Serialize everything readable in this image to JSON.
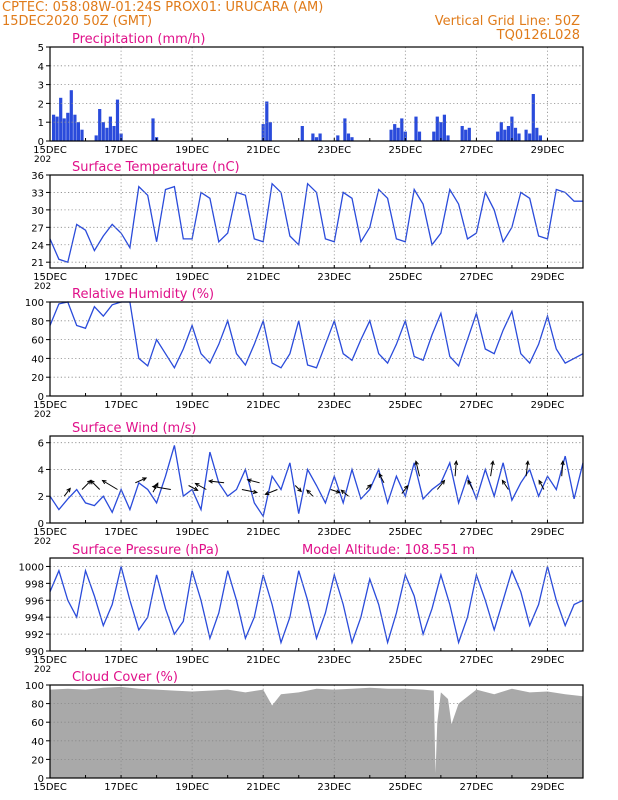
{
  "header": {
    "left_line1": "CPTEC:   058:08W-01:24S   PROX01: URUCARA (AM)",
    "left_line2": "15DEC2020 50Z (GMT)",
    "right_line1": "Vertical Grid Line: 50Z",
    "right_line2": "TQ0126L028"
  },
  "colors": {
    "header": "#e07b1a",
    "title": "#e0118a",
    "series": "#2a4bdb",
    "cloud": "#a9a9a9",
    "axis": "#000000",
    "grid": "#888888"
  },
  "x_axis": {
    "tick_labels": [
      "15DEC",
      "17DEC",
      "19DEC",
      "21DEC",
      "23DEC",
      "25DEC",
      "27DEC",
      "29DEC"
    ],
    "year_label": "202",
    "day_start": 15,
    "day_end": 30
  },
  "chart_data": [
    {
      "id": "precip",
      "type": "bar",
      "title": "Precipitation (mm/h)",
      "ylim": [
        0,
        5
      ],
      "yticks": [
        0,
        1,
        2,
        3,
        4,
        5
      ],
      "x_unit": "day of December 2020",
      "x": [
        15.1,
        15.2,
        15.3,
        15.4,
        15.5,
        15.6,
        15.7,
        15.8,
        15.9,
        16.3,
        16.4,
        16.5,
        16.6,
        16.7,
        16.8,
        16.9,
        17.0,
        17.9,
        18.0,
        21.0,
        21.1,
        21.2,
        22.1,
        22.4,
        22.5,
        22.6,
        23.1,
        23.3,
        23.4,
        23.5,
        24.6,
        24.7,
        24.8,
        24.9,
        25.0,
        25.3,
        25.4,
        25.8,
        25.9,
        26.0,
        26.1,
        26.2,
        26.6,
        26.7,
        26.8,
        27.6,
        27.7,
        27.8,
        27.9,
        28.0,
        28.1,
        28.2,
        28.4,
        28.5,
        28.6,
        28.7,
        28.8
      ],
      "values": [
        1.4,
        1.3,
        2.3,
        1.2,
        1.5,
        2.7,
        1.4,
        1.0,
        0.6,
        0.3,
        1.7,
        1.0,
        0.7,
        1.3,
        0.8,
        2.2,
        0.4,
        1.2,
        0.2,
        0.9,
        2.1,
        1.0,
        0.8,
        0.4,
        0.2,
        0.4,
        0.3,
        1.2,
        0.4,
        0.2,
        0.6,
        0.9,
        0.7,
        1.2,
        0.5,
        1.3,
        0.5,
        0.5,
        1.3,
        1.0,
        1.4,
        0.3,
        0.8,
        0.6,
        0.7,
        0.5,
        1.0,
        0.6,
        0.8,
        1.3,
        0.7,
        0.4,
        0.6,
        0.4,
        2.5,
        0.7,
        0.3
      ]
    },
    {
      "id": "temp",
      "type": "line",
      "title": "Surface Temperature (nC)",
      "ylim": [
        20,
        36
      ],
      "yticks": [
        21,
        24,
        27,
        30,
        33,
        36
      ],
      "x_unit": "day of December 2020",
      "x": [
        15.0,
        15.25,
        15.5,
        15.75,
        16.0,
        16.25,
        16.5,
        16.75,
        17.0,
        17.25,
        17.5,
        17.75,
        18.0,
        18.25,
        18.5,
        18.75,
        19.0,
        19.25,
        19.5,
        19.75,
        20.0,
        20.25,
        20.5,
        20.75,
        21.0,
        21.25,
        21.5,
        21.75,
        22.0,
        22.25,
        22.5,
        22.75,
        23.0,
        23.25,
        23.5,
        23.75,
        24.0,
        24.25,
        24.5,
        24.75,
        25.0,
        25.25,
        25.5,
        25.75,
        26.0,
        26.25,
        26.5,
        26.75,
        27.0,
        27.25,
        27.5,
        27.75,
        28.0,
        28.25,
        28.5,
        28.75,
        29.0,
        29.25,
        29.5,
        29.75,
        30.0
      ],
      "values": [
        25.0,
        21.5,
        21.0,
        27.5,
        26.5,
        23.0,
        25.5,
        27.5,
        26.0,
        23.5,
        34.0,
        32.5,
        24.5,
        33.5,
        34.0,
        25.0,
        25.0,
        33.0,
        32.0,
        24.5,
        26.0,
        33.0,
        32.5,
        25.0,
        24.5,
        34.5,
        33.0,
        25.5,
        24.0,
        34.5,
        33.0,
        25.0,
        24.5,
        33.0,
        32.0,
        24.5,
        27.0,
        33.5,
        32.0,
        25.0,
        24.5,
        33.5,
        31.0,
        24.0,
        26.0,
        33.5,
        31.0,
        25.0,
        26.0,
        33.0,
        30.0,
        24.5,
        27.0,
        33.0,
        32.0,
        25.5,
        25.0,
        33.5,
        33.0,
        31.5,
        31.5
      ]
    },
    {
      "id": "rh",
      "type": "line",
      "title": "Relative Humidity (%)",
      "ylim": [
        0,
        100
      ],
      "yticks": [
        0,
        20,
        40,
        60,
        80,
        100
      ],
      "x_unit": "day of December 2020",
      "x": [
        15.0,
        15.25,
        15.5,
        15.75,
        16.0,
        16.25,
        16.5,
        16.75,
        17.0,
        17.25,
        17.5,
        17.75,
        18.0,
        18.25,
        18.5,
        18.75,
        19.0,
        19.25,
        19.5,
        19.75,
        20.0,
        20.25,
        20.5,
        20.75,
        21.0,
        21.25,
        21.5,
        21.75,
        22.0,
        22.25,
        22.5,
        22.75,
        23.0,
        23.25,
        23.5,
        23.75,
        24.0,
        24.25,
        24.5,
        24.75,
        25.0,
        25.25,
        25.5,
        25.75,
        26.0,
        26.25,
        26.5,
        26.75,
        27.0,
        27.25,
        27.5,
        27.75,
        28.0,
        28.25,
        28.5,
        28.75,
        29.0,
        29.25,
        29.5,
        29.75,
        30.0
      ],
      "values": [
        75,
        98,
        100,
        75,
        72,
        95,
        85,
        97,
        100,
        100,
        40,
        32,
        60,
        45,
        30,
        50,
        75,
        45,
        35,
        55,
        80,
        45,
        33,
        55,
        80,
        35,
        30,
        45,
        80,
        33,
        30,
        55,
        80,
        45,
        38,
        60,
        80,
        45,
        35,
        55,
        80,
        42,
        38,
        65,
        88,
        42,
        32,
        60,
        88,
        50,
        45,
        70,
        90,
        45,
        35,
        55,
        85,
        50,
        35,
        40,
        45
      ]
    },
    {
      "id": "wind",
      "type": "line",
      "title": "Surface Wind (m/s)",
      "ylim": [
        0,
        6.5
      ],
      "yticks": [
        0,
        2,
        4,
        6
      ],
      "x_unit": "day of December 2020",
      "x": [
        15.0,
        15.25,
        15.5,
        15.75,
        16.0,
        16.25,
        16.5,
        16.75,
        17.0,
        17.25,
        17.5,
        17.75,
        18.0,
        18.25,
        18.5,
        18.75,
        19.0,
        19.25,
        19.5,
        19.75,
        20.0,
        20.25,
        20.5,
        20.75,
        21.0,
        21.25,
        21.5,
        21.75,
        22.0,
        22.25,
        22.5,
        22.75,
        23.0,
        23.25,
        23.5,
        23.75,
        24.0,
        24.25,
        24.5,
        24.75,
        25.0,
        25.25,
        25.5,
        25.75,
        26.0,
        26.25,
        26.5,
        26.75,
        27.0,
        27.25,
        27.5,
        27.75,
        28.0,
        28.25,
        28.5,
        28.75,
        29.0,
        29.25,
        29.5,
        29.75,
        30.0
      ],
      "values": [
        2.0,
        1.0,
        1.8,
        2.5,
        1.5,
        1.3,
        2.0,
        0.8,
        2.5,
        1.0,
        3.0,
        2.5,
        1.5,
        3.5,
        5.8,
        2.0,
        2.5,
        1.0,
        5.3,
        3.0,
        2.0,
        2.5,
        4.0,
        1.5,
        0.5,
        3.5,
        2.5,
        4.5,
        0.7,
        4.0,
        2.8,
        1.5,
        3.5,
        1.5,
        4.0,
        1.8,
        2.5,
        4.0,
        1.5,
        3.5,
        2.0,
        4.5,
        1.8,
        2.5,
        3.0,
        4.5,
        1.5,
        3.5,
        1.8,
        4.0,
        2.0,
        4.5,
        1.7,
        3.0,
        4.0,
        2.0,
        3.5,
        2.5,
        5.0,
        1.8,
        4.5
      ],
      "vectors": {
        "x": [
          15.4,
          15.9,
          16.4,
          16.9,
          17.4,
          17.9,
          18.4,
          18.9,
          19.4,
          19.9,
          20.4,
          20.9,
          21.4,
          21.9,
          22.4,
          22.9,
          23.4,
          23.9,
          24.4,
          24.9,
          25.4,
          25.9,
          26.4,
          26.9,
          27.4,
          27.9,
          28.4,
          28.9,
          29.4
        ],
        "y": [
          2.0,
          2.5,
          2.5,
          2.5,
          3.0,
          2.3,
          2.5,
          2.8,
          2.5,
          3.0,
          2.5,
          3.0,
          2.5,
          2.8,
          2.0,
          2.5,
          2.0,
          2.5,
          3.0,
          2.2,
          3.5,
          2.5,
          3.5,
          2.5,
          3.5,
          2.5,
          3.5,
          2.5,
          3.5
        ],
        "u": [
          1.0,
          1.5,
          -1.5,
          -2.5,
          1.8,
          0.8,
          -3.0,
          1.5,
          -1.8,
          -2.5,
          2.5,
          -2.0,
          -2.0,
          1.0,
          -1.0,
          1.5,
          -1.2,
          0.8,
          -0.8,
          1.0,
          -0.6,
          1.2,
          0.2,
          -0.8,
          0.4,
          -1.0,
          0.3,
          -0.8,
          0.2
        ],
        "v": [
          1.3,
          1.5,
          1.5,
          1.5,
          0.8,
          1.5,
          0.5,
          -0.8,
          1.0,
          0.3,
          -0.5,
          0.5,
          -0.8,
          -1.0,
          1.0,
          -0.5,
          1.0,
          0.8,
          1.5,
          1.3,
          2.5,
          1.5,
          2.5,
          1.5,
          2.5,
          1.5,
          2.5,
          1.5,
          2.5
        ]
      }
    },
    {
      "id": "pres",
      "type": "line",
      "title": "Surface Pressure (hPa)",
      "annotation": "Model Altitude: 108.551  m",
      "ylim": [
        990,
        1001
      ],
      "yticks": [
        990,
        992,
        994,
        996,
        998,
        1000
      ],
      "x_unit": "day of December 2020",
      "x": [
        15.0,
        15.25,
        15.5,
        15.75,
        16.0,
        16.25,
        16.5,
        16.75,
        17.0,
        17.25,
        17.5,
        17.75,
        18.0,
        18.25,
        18.5,
        18.75,
        19.0,
        19.25,
        19.5,
        19.75,
        20.0,
        20.25,
        20.5,
        20.75,
        21.0,
        21.25,
        21.5,
        21.75,
        22.0,
        22.25,
        22.5,
        22.75,
        23.0,
        23.25,
        23.5,
        23.75,
        24.0,
        24.25,
        24.5,
        24.75,
        25.0,
        25.25,
        25.5,
        25.75,
        26.0,
        26.25,
        26.5,
        26.75,
        27.0,
        27.25,
        27.5,
        27.75,
        28.0,
        28.25,
        28.5,
        28.75,
        29.0,
        29.25,
        29.5,
        29.75,
        30.0
      ],
      "values": [
        997.0,
        999.5,
        996.0,
        994.0,
        999.5,
        996.5,
        993.0,
        995.5,
        1000.0,
        996.0,
        992.5,
        994.0,
        999.0,
        995.0,
        992.0,
        993.5,
        999.5,
        996.0,
        991.5,
        994.5,
        999.5,
        996.0,
        991.5,
        994.0,
        999.0,
        995.5,
        991.0,
        994.0,
        999.5,
        996.0,
        991.5,
        994.5,
        999.0,
        995.5,
        991.0,
        994.0,
        998.5,
        995.5,
        991.0,
        994.5,
        999.0,
        996.5,
        992.0,
        995.0,
        999.0,
        995.5,
        991.0,
        994.0,
        999.0,
        996.0,
        992.5,
        996.0,
        999.5,
        997.0,
        993.0,
        995.5,
        1000.0,
        996.0,
        993.0,
        995.5,
        996.0
      ]
    },
    {
      "id": "cloud",
      "type": "area",
      "title": "Cloud Cover (%)",
      "ylim": [
        0,
        100
      ],
      "yticks": [
        0,
        20,
        40,
        60,
        80,
        100
      ],
      "x_unit": "day of December 2020",
      "x": [
        15.0,
        15.5,
        16.0,
        16.5,
        17.0,
        17.5,
        18.0,
        18.5,
        19.0,
        19.5,
        20.0,
        20.5,
        21.0,
        21.25,
        21.5,
        22.0,
        22.5,
        23.0,
        23.5,
        24.0,
        24.5,
        25.0,
        25.5,
        25.8,
        25.85,
        25.9,
        26.0,
        26.2,
        26.3,
        26.5,
        27.0,
        27.5,
        28.0,
        28.5,
        29.0,
        29.5,
        30.0
      ],
      "values": [
        95,
        96,
        95,
        97,
        98,
        96,
        95,
        94,
        93,
        94,
        95,
        92,
        95,
        78,
        90,
        92,
        96,
        95,
        96,
        97,
        96,
        96,
        95,
        94,
        5,
        60,
        92,
        85,
        58,
        80,
        95,
        90,
        96,
        92,
        93,
        90,
        88
      ]
    }
  ]
}
